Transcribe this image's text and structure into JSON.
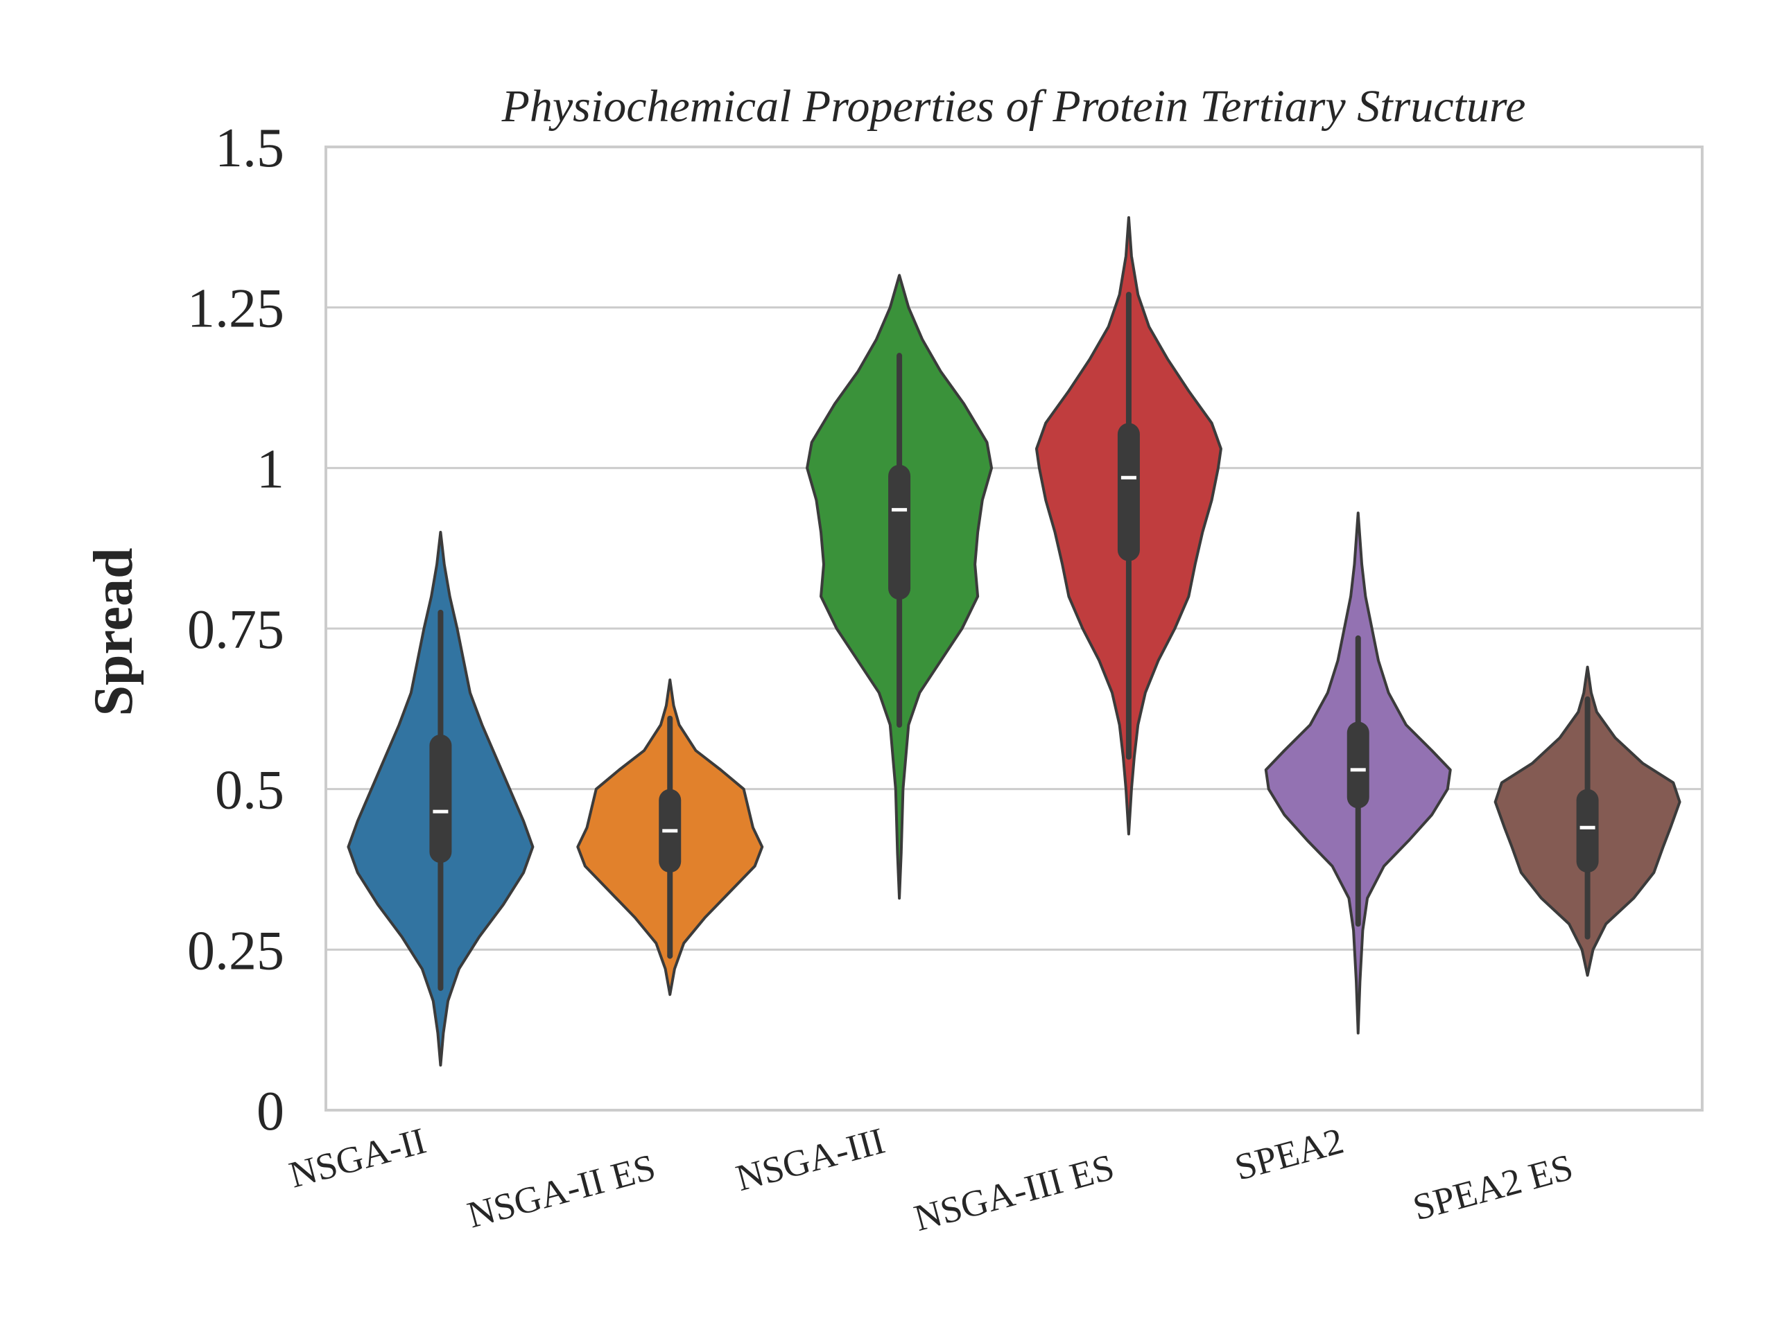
{
  "chart_data": {
    "type": "violin",
    "title": "Physiochemical Properties of Protein Tertiary Structure",
    "xlabel": "",
    "ylabel": "Spread",
    "ylim": [
      0,
      1.5
    ],
    "yticks": [
      0,
      0.25,
      0.5,
      0.75,
      1,
      1.25,
      1.5
    ],
    "ytick_labels": [
      "0",
      "0.25",
      "0.5",
      "0.75",
      "1",
      "1.25",
      "1.5"
    ],
    "grid": true,
    "legend": "none",
    "categories": [
      "NSGA-II",
      "NSGA-II ES",
      "NSGA-III",
      "NSGA-III ES",
      "SPEA2",
      "SPEA2 ES"
    ],
    "series": [
      {
        "category": "NSGA-II",
        "color": "#3274a1",
        "min": 0.07,
        "max": 0.9,
        "q1": 0.385,
        "median": 0.465,
        "q3": 0.585,
        "whisker_low": 0.19,
        "whisker_high": 0.775,
        "density": [
          [
            0.07,
            0.0
          ],
          [
            0.12,
            0.03
          ],
          [
            0.17,
            0.08
          ],
          [
            0.22,
            0.2
          ],
          [
            0.27,
            0.42
          ],
          [
            0.32,
            0.68
          ],
          [
            0.37,
            0.9
          ],
          [
            0.41,
            1.0
          ],
          [
            0.45,
            0.9
          ],
          [
            0.5,
            0.75
          ],
          [
            0.55,
            0.6
          ],
          [
            0.6,
            0.45
          ],
          [
            0.65,
            0.32
          ],
          [
            0.7,
            0.25
          ],
          [
            0.75,
            0.18
          ],
          [
            0.8,
            0.1
          ],
          [
            0.85,
            0.04
          ],
          [
            0.9,
            0.0
          ]
        ]
      },
      {
        "category": "NSGA-II ES",
        "color": "#e1812c",
        "min": 0.18,
        "max": 0.67,
        "q1": 0.37,
        "median": 0.435,
        "q3": 0.5,
        "whisker_low": 0.24,
        "whisker_high": 0.61,
        "density": [
          [
            0.18,
            0.0
          ],
          [
            0.22,
            0.05
          ],
          [
            0.26,
            0.15
          ],
          [
            0.3,
            0.38
          ],
          [
            0.34,
            0.65
          ],
          [
            0.38,
            0.92
          ],
          [
            0.41,
            1.0
          ],
          [
            0.44,
            0.9
          ],
          [
            0.47,
            0.85
          ],
          [
            0.5,
            0.8
          ],
          [
            0.53,
            0.55
          ],
          [
            0.56,
            0.28
          ],
          [
            0.6,
            0.1
          ],
          [
            0.63,
            0.04
          ],
          [
            0.67,
            0.0
          ]
        ]
      },
      {
        "category": "NSGA-III",
        "color": "#3a923a",
        "min": 0.33,
        "max": 1.3,
        "q1": 0.795,
        "median": 0.935,
        "q3": 1.005,
        "whisker_low": 0.6,
        "whisker_high": 1.175,
        "density": [
          [
            0.33,
            0.0
          ],
          [
            0.4,
            0.02
          ],
          [
            0.5,
            0.04
          ],
          [
            0.6,
            0.1
          ],
          [
            0.65,
            0.22
          ],
          [
            0.7,
            0.45
          ],
          [
            0.75,
            0.68
          ],
          [
            0.8,
            0.85
          ],
          [
            0.85,
            0.82
          ],
          [
            0.9,
            0.85
          ],
          [
            0.95,
            0.9
          ],
          [
            1.0,
            1.0
          ],
          [
            1.04,
            0.95
          ],
          [
            1.1,
            0.7
          ],
          [
            1.15,
            0.45
          ],
          [
            1.2,
            0.25
          ],
          [
            1.25,
            0.1
          ],
          [
            1.3,
            0.0
          ]
        ]
      },
      {
        "category": "NSGA-III ES",
        "color": "#c03d3e",
        "min": 0.43,
        "max": 1.39,
        "q1": 0.855,
        "median": 0.985,
        "q3": 1.07,
        "whisker_low": 0.55,
        "whisker_high": 1.27,
        "density": [
          [
            0.43,
            0.0
          ],
          [
            0.5,
            0.03
          ],
          [
            0.55,
            0.06
          ],
          [
            0.6,
            0.1
          ],
          [
            0.65,
            0.18
          ],
          [
            0.7,
            0.32
          ],
          [
            0.75,
            0.5
          ],
          [
            0.8,
            0.65
          ],
          [
            0.85,
            0.72
          ],
          [
            0.9,
            0.8
          ],
          [
            0.95,
            0.9
          ],
          [
            1.0,
            0.97
          ],
          [
            1.03,
            1.0
          ],
          [
            1.07,
            0.9
          ],
          [
            1.12,
            0.65
          ],
          [
            1.17,
            0.42
          ],
          [
            1.22,
            0.22
          ],
          [
            1.27,
            0.1
          ],
          [
            1.33,
            0.03
          ],
          [
            1.39,
            0.0
          ]
        ]
      },
      {
        "category": "SPEA2",
        "color": "#9372b2",
        "min": 0.12,
        "max": 0.93,
        "q1": 0.47,
        "median": 0.53,
        "q3": 0.605,
        "whisker_low": 0.29,
        "whisker_high": 0.735,
        "density": [
          [
            0.12,
            0.0
          ],
          [
            0.2,
            0.02
          ],
          [
            0.28,
            0.05
          ],
          [
            0.33,
            0.1
          ],
          [
            0.38,
            0.28
          ],
          [
            0.42,
            0.55
          ],
          [
            0.46,
            0.8
          ],
          [
            0.5,
            0.97
          ],
          [
            0.53,
            1.0
          ],
          [
            0.56,
            0.8
          ],
          [
            0.6,
            0.52
          ],
          [
            0.65,
            0.33
          ],
          [
            0.7,
            0.22
          ],
          [
            0.75,
            0.15
          ],
          [
            0.8,
            0.08
          ],
          [
            0.85,
            0.04
          ],
          [
            0.93,
            0.0
          ]
        ]
      },
      {
        "category": "SPEA2 ES",
        "color": "#845b53",
        "min": 0.21,
        "max": 0.69,
        "q1": 0.37,
        "median": 0.44,
        "q3": 0.5,
        "whisker_low": 0.27,
        "whisker_high": 0.64,
        "density": [
          [
            0.21,
            0.0
          ],
          [
            0.25,
            0.06
          ],
          [
            0.29,
            0.2
          ],
          [
            0.33,
            0.5
          ],
          [
            0.37,
            0.72
          ],
          [
            0.41,
            0.82
          ],
          [
            0.44,
            0.9
          ],
          [
            0.48,
            1.0
          ],
          [
            0.51,
            0.93
          ],
          [
            0.54,
            0.6
          ],
          [
            0.58,
            0.3
          ],
          [
            0.62,
            0.1
          ],
          [
            0.65,
            0.04
          ],
          [
            0.69,
            0.0
          ]
        ]
      }
    ]
  },
  "colors": {
    "grid": "#cccccc",
    "frame": "#cccccc",
    "outline": "#3b3b3b",
    "box": "#3b3b3b",
    "median": "#ffffff",
    "text": "#262626"
  }
}
